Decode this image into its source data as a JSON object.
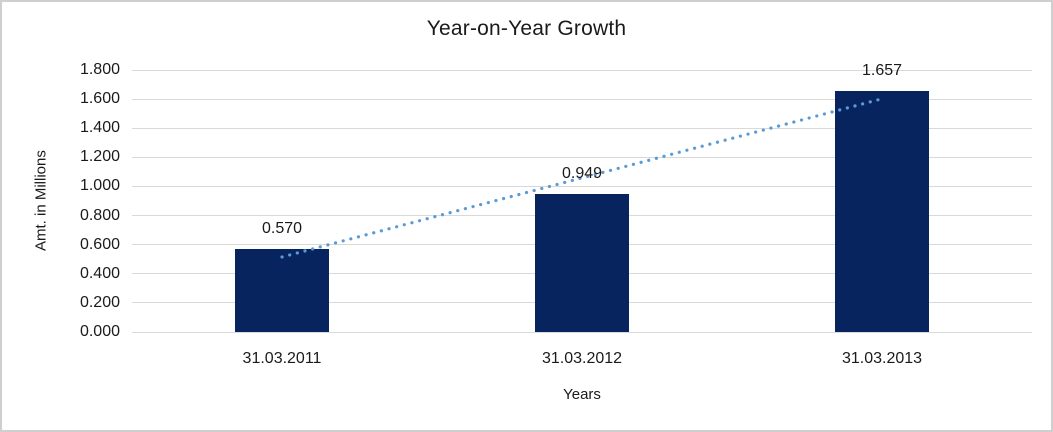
{
  "chart_data": {
    "type": "bar",
    "title": "Year-on-Year Growth",
    "xlabel": "Years",
    "ylabel": "Amt. in Millions",
    "categories": [
      "31.03.2011",
      "31.03.2012",
      "31.03.2013"
    ],
    "values": [
      0.57,
      0.949,
      1.657
    ],
    "data_labels": [
      "0.570",
      "0.949",
      "1.657"
    ],
    "y_ticks": [
      "0.000",
      "0.200",
      "0.400",
      "0.600",
      "0.800",
      "1.000",
      "1.200",
      "1.400",
      "1.600",
      "1.800"
    ],
    "ylim": [
      0,
      1.8
    ],
    "grid": true,
    "legend": "none",
    "trendline": {
      "type": "linear",
      "style": "dotted"
    },
    "colors": {
      "bar": "#08245F",
      "trendline": "#5B9BD5",
      "gridline": "#D9D9D9",
      "text": "#1A1A1A",
      "frame_border": "#CFCFCF",
      "background": "#FFFFFF"
    }
  }
}
